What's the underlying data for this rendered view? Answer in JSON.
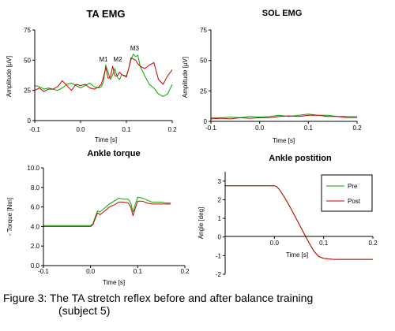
{
  "colors": {
    "pre": "#00aa00",
    "post": "#cc0000",
    "axis": "#000000"
  },
  "caption": {
    "line1": "Figure 3: The TA stretch reflex before and after balance training",
    "line2": "(subject 5)"
  },
  "chart_data": [
    {
      "id": "ta",
      "type": "line",
      "title": "TA EMG",
      "xlabel": "Time [s]",
      "ylabel": "Amplitude [µV]",
      "xlim": [
        -0.1,
        0.2
      ],
      "ylim": [
        0,
        75
      ],
      "xticks": [
        -0.1,
        0,
        0.1,
        0.2
      ],
      "xtick_labels": [
        "-0.1",
        "0.0",
        "0.1",
        "0.2"
      ],
      "yticks": [
        0,
        25,
        50,
        75
      ],
      "ytick_labels": [
        "0",
        "25",
        "50",
        "75"
      ],
      "annotations": [
        {
          "text": "M1",
          "x": 0.05,
          "y": 49
        },
        {
          "text": "M2",
          "x": 0.081,
          "y": 49
        },
        {
          "text": "M3",
          "x": 0.118,
          "y": 58
        }
      ],
      "series": [
        {
          "key": "pre",
          "x": [
            -0.1,
            -0.09,
            -0.08,
            -0.07,
            -0.06,
            -0.05,
            -0.04,
            -0.03,
            -0.02,
            -0.01,
            0,
            0.01,
            0.02,
            0.03,
            0.04,
            0.045,
            0.05,
            0.055,
            0.06,
            0.065,
            0.07,
            0.075,
            0.08,
            0.085,
            0.09,
            0.1,
            0.105,
            0.11,
            0.115,
            0.12,
            0.125,
            0.13,
            0.14,
            0.15,
            0.16,
            0.17,
            0.18,
            0.19,
            0.2
          ],
          "y": [
            29,
            28,
            26,
            27,
            26,
            25,
            27,
            30,
            31,
            29,
            27,
            29,
            31,
            28,
            27,
            28,
            32,
            46,
            40,
            34,
            38,
            43,
            36,
            34,
            38,
            37,
            43,
            50,
            55,
            53,
            54,
            45,
            37,
            30,
            27,
            22,
            20,
            22,
            30
          ]
        },
        {
          "key": "post",
          "x": [
            -0.1,
            -0.09,
            -0.08,
            -0.07,
            -0.06,
            -0.05,
            -0.04,
            -0.03,
            -0.02,
            -0.01,
            0,
            0.01,
            0.02,
            0.03,
            0.04,
            0.045,
            0.05,
            0.055,
            0.06,
            0.065,
            0.07,
            0.075,
            0.08,
            0.085,
            0.09,
            0.1,
            0.105,
            0.11,
            0.115,
            0.12,
            0.125,
            0.13,
            0.14,
            0.15,
            0.16,
            0.17,
            0.18,
            0.19,
            0.2
          ],
          "y": [
            25,
            27,
            24,
            26,
            26,
            28,
            33,
            29,
            25,
            30,
            29,
            30,
            27,
            26,
            28,
            30,
            36,
            44,
            35,
            36,
            45,
            37,
            37,
            40,
            38,
            36,
            43,
            52,
            51,
            50,
            47,
            45,
            43,
            46,
            48,
            34,
            30,
            37,
            42
          ]
        }
      ]
    },
    {
      "id": "sol",
      "type": "line",
      "title": "SOL EMG",
      "xlabel": "Time [s]",
      "ylabel": "Amplitude [µV]",
      "xlim": [
        -0.1,
        0.2
      ],
      "ylim": [
        0,
        75
      ],
      "xticks": [
        -0.1,
        0,
        0.1,
        0.2
      ],
      "xtick_labels": [
        "-0.1",
        "0.0",
        "0.1",
        "0.2"
      ],
      "yticks": [
        0,
        25,
        50,
        75
      ],
      "ytick_labels": [
        "0",
        "25",
        "50",
        "75"
      ],
      "series": [
        {
          "key": "pre",
          "x": [
            -0.1,
            -0.08,
            -0.06,
            -0.04,
            -0.02,
            0,
            0.02,
            0.04,
            0.06,
            0.08,
            0.1,
            0.12,
            0.14,
            0.16,
            0.18,
            0.2
          ],
          "y": [
            3,
            3,
            3.5,
            3,
            4,
            3.5,
            4,
            5,
            4,
            5,
            6,
            5,
            5,
            4,
            4,
            4
          ]
        },
        {
          "key": "post",
          "x": [
            -0.1,
            -0.08,
            -0.06,
            -0.04,
            -0.02,
            0,
            0.02,
            0.04,
            0.06,
            0.08,
            0.1,
            0.12,
            0.14,
            0.16,
            0.18,
            0.2
          ],
          "y": [
            2,
            2.5,
            2,
            3,
            2.5,
            3,
            3,
            4,
            4.5,
            4,
            5,
            5,
            4,
            4,
            3,
            3
          ]
        }
      ]
    },
    {
      "id": "torque",
      "type": "line",
      "title": "Ankle torque",
      "xlabel": "Time [s]",
      "ylabel": "- Torque [Nm]",
      "xlim": [
        -0.1,
        0.2
      ],
      "ylim": [
        0,
        10
      ],
      "xticks": [
        -0.1,
        0,
        0.1,
        0.2
      ],
      "xtick_labels": [
        "-0.1",
        "0.0",
        "0.1",
        "0.2"
      ],
      "yticks": [
        0,
        2,
        4,
        6,
        8,
        10
      ],
      "ytick_labels": [
        "0.0",
        "2.0",
        "4.0",
        "6.0",
        "8.0",
        "10.0"
      ],
      "series": [
        {
          "key": "pre",
          "x": [
            -0.1,
            -0.05,
            0,
            0.005,
            0.01,
            0.015,
            0.02,
            0.03,
            0.04,
            0.05,
            0.06,
            0.07,
            0.08,
            0.085,
            0.09,
            0.095,
            0.1,
            0.11,
            0.12,
            0.13,
            0.14,
            0.15,
            0.16,
            0.17
          ],
          "y": [
            4.1,
            4.1,
            4.1,
            4.3,
            5.0,
            5.6,
            5.5,
            5.9,
            6.3,
            6.6,
            6.9,
            6.8,
            6.8,
            6.4,
            5.5,
            6.3,
            7.0,
            6.9,
            6.7,
            6.5,
            6.5,
            6.5,
            6.4,
            6.4
          ]
        },
        {
          "key": "post",
          "x": [
            -0.1,
            -0.05,
            0,
            0.005,
            0.01,
            0.015,
            0.02,
            0.03,
            0.04,
            0.05,
            0.06,
            0.07,
            0.08,
            0.085,
            0.09,
            0.095,
            0.1,
            0.11,
            0.12,
            0.13,
            0.14,
            0.15,
            0.16,
            0.17
          ],
          "y": [
            4.0,
            4.0,
            4.0,
            4.2,
            4.8,
            5.4,
            5.2,
            5.6,
            6.0,
            6.2,
            6.5,
            6.5,
            6.4,
            6.0,
            5.1,
            5.9,
            6.6,
            6.6,
            6.4,
            6.3,
            6.3,
            6.3,
            6.3,
            6.3
          ]
        }
      ]
    },
    {
      "id": "position",
      "type": "line",
      "title": "Ankle postition",
      "xlabel": "Time [s]",
      "ylabel": "Angle [deg]",
      "xlim": [
        -0.1,
        0.2
      ],
      "ylim": [
        -2,
        3.5
      ],
      "xticks": [
        0,
        0.1,
        0.2
      ],
      "xtick_labels": [
        "0.0",
        "0.1",
        "0.2"
      ],
      "yticks": [
        -2,
        -1,
        0,
        1,
        2,
        3
      ],
      "ytick_labels": [
        "-2",
        "-1",
        "0",
        "1",
        "2",
        "3"
      ],
      "legend": {
        "position": "top-right",
        "entries": [
          {
            "key": "pre",
            "label": "Pre"
          },
          {
            "key": "post",
            "label": "Post"
          }
        ]
      },
      "series": [
        {
          "key": "pre",
          "x": [
            -0.1,
            0,
            0.005,
            0.01,
            0.02,
            0.03,
            0.04,
            0.05,
            0.06,
            0.07,
            0.08,
            0.09,
            0.1,
            0.12,
            0.15,
            0.2
          ],
          "y": [
            2.75,
            2.75,
            2.7,
            2.55,
            2.15,
            1.7,
            1.2,
            0.7,
            0.2,
            -0.3,
            -0.75,
            -1.05,
            -1.15,
            -1.2,
            -1.2,
            -1.2
          ]
        },
        {
          "key": "post",
          "x": [
            -0.1,
            0,
            0.005,
            0.01,
            0.02,
            0.03,
            0.04,
            0.05,
            0.06,
            0.07,
            0.08,
            0.09,
            0.1,
            0.12,
            0.15,
            0.2
          ],
          "y": [
            2.75,
            2.75,
            2.7,
            2.55,
            2.15,
            1.7,
            1.2,
            0.7,
            0.2,
            -0.3,
            -0.75,
            -1.05,
            -1.15,
            -1.2,
            -1.2,
            -1.2
          ]
        }
      ]
    }
  ]
}
